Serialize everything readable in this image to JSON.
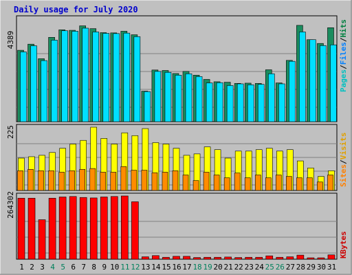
{
  "title": "Daily usage for July 2020",
  "colors": {
    "hits": "#008040",
    "files": "#0080ff",
    "pages": "#00c0c0",
    "visits": "#ff8000",
    "sites": "#e0a000",
    "kbytes": "#cc0000",
    "weekend_day": "#00805c",
    "day": "#000000",
    "bar_hits": "#1a8c5e",
    "bar_files": "#00e0ff",
    "bar_visits": "#ffff00",
    "bar_sites": "#ff8c00",
    "bar_kbytes": "#ff0000"
  },
  "chart_data": [
    {
      "type": "bar",
      "name": "hits-files-chart",
      "ylabel_max": "4389",
      "legend": {
        "hits": "Hits",
        "files": "Files",
        "pages": "Pages",
        "sep": "/"
      },
      "ylim": [
        0,
        4389
      ],
      "categories": [
        "1",
        "2",
        "3",
        "4",
        "5",
        "6",
        "7",
        "8",
        "9",
        "10",
        "11",
        "12",
        "13",
        "14",
        "15",
        "16",
        "17",
        "18",
        "19",
        "20",
        "21",
        "22",
        "23",
        "24",
        "25",
        "26",
        "27",
        "28",
        "29",
        "30",
        "31"
      ],
      "series": [
        {
          "name": "Hits",
          "values": [
            3040,
            3300,
            2680,
            3590,
            3910,
            3890,
            4080,
            3960,
            3790,
            3780,
            3850,
            3700,
            1300,
            2200,
            2180,
            2050,
            2140,
            1980,
            1800,
            1700,
            1680,
            1630,
            1640,
            1630,
            2210,
            1650,
            2610,
            4100,
            3490,
            3330,
            4000
          ]
        },
        {
          "name": "Files",
          "values": [
            2970,
            3230,
            2600,
            3470,
            3870,
            3850,
            3980,
            3820,
            3760,
            3750,
            3770,
            3620,
            1280,
            2140,
            2100,
            1980,
            2040,
            1920,
            1650,
            1660,
            1540,
            1610,
            1570,
            1590,
            2040,
            1610,
            2570,
            3820,
            3490,
            3240,
            3270
          ]
        }
      ]
    },
    {
      "type": "bar",
      "name": "visits-sites-chart",
      "ylabel_max": "225",
      "legend": {
        "sites": "Sites",
        "visits": "Visits",
        "sep": "/"
      },
      "ylim": [
        0,
        225
      ],
      "categories": [
        "1",
        "2",
        "3",
        "4",
        "5",
        "6",
        "7",
        "8",
        "9",
        "10",
        "11",
        "12",
        "13",
        "14",
        "15",
        "16",
        "17",
        "18",
        "19",
        "20",
        "21",
        "22",
        "23",
        "24",
        "25",
        "26",
        "27",
        "28",
        "29",
        "30",
        "31"
      ],
      "series": [
        {
          "name": "Visits",
          "values": [
            115,
            120,
            125,
            135,
            150,
            165,
            178,
            225,
            185,
            165,
            205,
            195,
            220,
            170,
            165,
            150,
            125,
            130,
            155,
            145,
            115,
            140,
            140,
            145,
            150,
            140,
            145,
            105,
            80,
            50,
            70
          ]
        },
        {
          "name": "Sites",
          "values": [
            70,
            75,
            70,
            70,
            65,
            70,
            75,
            78,
            65,
            65,
            85,
            72,
            72,
            63,
            65,
            70,
            55,
            35,
            65,
            55,
            45,
            62,
            45,
            55,
            45,
            55,
            50,
            45,
            45,
            30,
            55
          ]
        }
      ]
    },
    {
      "type": "bar",
      "name": "kbytes-chart",
      "ylabel_max": "264302",
      "legend": {
        "kbytes": "KBytes"
      },
      "ylim": [
        0,
        264302
      ],
      "categories": [
        "1",
        "2",
        "3",
        "4",
        "5",
        "6",
        "7",
        "8",
        "9",
        "10",
        "11",
        "12",
        "13",
        "14",
        "15",
        "16",
        "17",
        "18",
        "19",
        "20",
        "21",
        "22",
        "23",
        "24",
        "25",
        "26",
        "27",
        "28",
        "29",
        "30",
        "31"
      ],
      "series": [
        {
          "name": "KBytes",
          "values": [
            255000,
            255000,
            165000,
            255000,
            260000,
            262000,
            258000,
            256000,
            260000,
            262000,
            264302,
            240000,
            10000,
            15000,
            8000,
            12000,
            12000,
            7000,
            8000,
            8000,
            9000,
            7000,
            8000,
            8000,
            14000,
            8000,
            10000,
            17000,
            5000,
            4000,
            18000
          ]
        }
      ]
    }
  ]
}
